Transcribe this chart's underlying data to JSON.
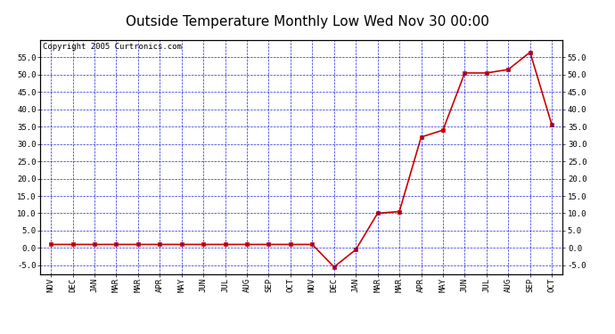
{
  "title": "Outside Temperature Monthly Low Wed Nov 30 00:00",
  "copyright": "Copyright 2005 Curtronics.com",
  "categories": [
    "NOV",
    "DEC",
    "JAN",
    "MAR",
    "MAR",
    "APR",
    "MAY",
    "JUN",
    "JUL",
    "AUG",
    "SEP",
    "OCT",
    "NOV",
    "DEC",
    "JAN",
    "MAR",
    "MAR",
    "APR",
    "MAY",
    "JUN",
    "JUL",
    "AUG",
    "SEP",
    "OCT"
  ],
  "values": [
    1.0,
    1.0,
    1.0,
    1.0,
    1.0,
    1.0,
    1.0,
    1.0,
    1.0,
    1.0,
    1.0,
    1.0,
    1.0,
    -5.5,
    -0.5,
    10.0,
    10.5,
    32.0,
    34.0,
    50.5,
    50.5,
    51.5,
    56.5,
    35.5
  ],
  "ylim": [
    -7.5,
    60.0
  ],
  "yticks": [
    -5.0,
    0.0,
    5.0,
    10.0,
    15.0,
    20.0,
    25.0,
    30.0,
    35.0,
    40.0,
    45.0,
    50.0,
    55.0
  ],
  "line_color": "#cc0000",
  "marker": "s",
  "marker_size": 2.5,
  "plot_bg": "#ffffff",
  "grid_color": "#0000cc",
  "title_fontsize": 11,
  "copyright_fontsize": 6.5,
  "tick_fontsize": 6.5,
  "fig_bg": "#ffffff"
}
